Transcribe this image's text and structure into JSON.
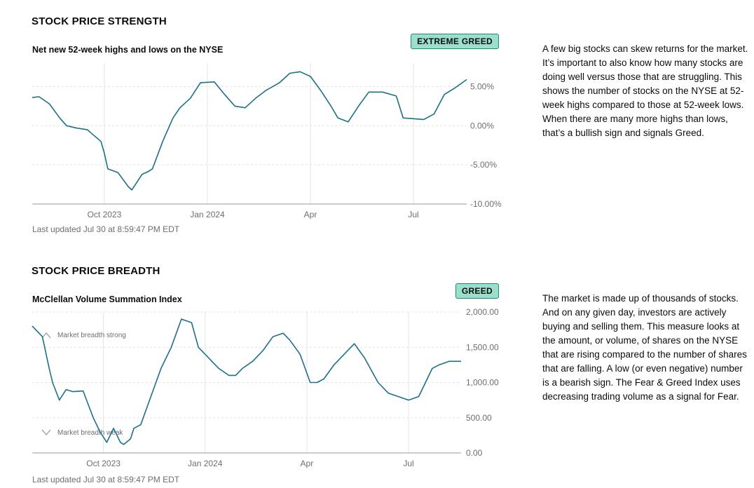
{
  "sections": [
    {
      "heading": "STOCK PRICE STRENGTH",
      "chart_title": "Net new 52-week highs and lows on the NYSE",
      "badge": "EXTREME GREED",
      "updated": "Last updated Jul 30 at 8:59:47 PM EDT",
      "description": "A few big stocks can skew returns for the market. It’s important to also know how many stocks are doing well versus those that are struggling. This shows the number of stocks on the NYSE at 52-week highs compared to those at 52-week lows. When there are many more highs than lows, that’s a bullish sign and signals Greed."
    },
    {
      "heading": "STOCK PRICE BREADTH",
      "chart_title": "McClellan Volume Summation Index",
      "badge": "GREED",
      "updated": "Last updated Jul 30 at 8:59:47 PM EDT",
      "description": "The market is made up of thousands of stocks. And on any given day, investors are actively buying and selling them. This measure looks at the amount, or volume, of shares on the NYSE that are rising compared to the number of shares that are falling. A low (or even negative) number is a bearish sign. The Fear & Greed Index uses decreasing trading volume as a signal for Fear."
    }
  ],
  "colors": {
    "line": "#1d6f8a",
    "grid": "#e3e3e3",
    "axis": "#6e6e6e",
    "badge_bg": "#9bdecb"
  },
  "chart_data": [
    {
      "type": "line",
      "title": "Net new 52-week highs and lows on the NYSE",
      "xlabel": "",
      "ylabel": "",
      "x_range": [
        0,
        12.65
      ],
      "ylim": [
        -10,
        8
      ],
      "yticks": [
        5,
        0,
        -5,
        -10
      ],
      "ytick_labels": [
        "5.00%",
        "0.00%",
        "-5.00%",
        "-10.00%"
      ],
      "xticks": [
        2.1,
        5.1,
        8.1,
        11.1
      ],
      "xtick_labels": [
        "Oct 2023",
        "Jan 2024",
        "Apr",
        "Jul"
      ],
      "series": [
        {
          "name": "Net new highs",
          "x": [
            0,
            0.2,
            0.5,
            0.8,
            1.0,
            1.3,
            1.6,
            2.0,
            2.1,
            2.2,
            2.5,
            2.8,
            2.9,
            3.2,
            3.4,
            3.5,
            3.8,
            4.1,
            4.3,
            4.6,
            4.9,
            5.3,
            5.6,
            5.9,
            6.2,
            6.5,
            6.8,
            7.2,
            7.5,
            7.8,
            8.1,
            8.4,
            8.7,
            8.9,
            9.2,
            9.5,
            9.8,
            10.2,
            10.6,
            10.8,
            11.1,
            11.4,
            11.7,
            12.0,
            12.3,
            12.65
          ],
          "values": [
            3.6,
            3.7,
            2.8,
            1.0,
            0.0,
            -0.3,
            -0.5,
            -2.0,
            -3.5,
            -5.5,
            -6.0,
            -7.8,
            -8.2,
            -6.2,
            -5.8,
            -5.5,
            -2.0,
            1.0,
            2.3,
            3.5,
            5.5,
            5.6,
            4.0,
            2.5,
            2.3,
            3.5,
            4.5,
            5.5,
            6.7,
            6.9,
            6.3,
            4.5,
            2.5,
            1.0,
            0.5,
            2.5,
            4.3,
            4.3,
            3.8,
            1.0,
            0.9,
            0.8,
            1.5,
            4.0,
            4.8,
            5.9
          ]
        }
      ]
    },
    {
      "type": "line",
      "title": "McClellan Volume Summation Index",
      "xlabel": "",
      "ylabel": "",
      "x_range": [
        0,
        12.65
      ],
      "ylim": [
        0,
        2000
      ],
      "yticks": [
        2000,
        1500,
        1000,
        500,
        0
      ],
      "ytick_labels": [
        "2,000.00",
        "1,500.00",
        "1,000.00",
        "500.00",
        "0.00"
      ],
      "xticks": [
        2.1,
        5.1,
        8.1,
        11.1
      ],
      "xtick_labels": [
        "Oct 2023",
        "Jan 2024",
        "Apr",
        "Jul"
      ],
      "annotations": [
        "Market breadth strong",
        "Market breadth weak"
      ],
      "series": [
        {
          "name": "Summation Index",
          "x": [
            0,
            0.3,
            0.5,
            0.6,
            0.8,
            1.0,
            1.2,
            1.5,
            1.8,
            2.0,
            2.2,
            2.4,
            2.6,
            2.7,
            2.9,
            3.0,
            3.2,
            3.5,
            3.8,
            4.1,
            4.4,
            4.7,
            4.9,
            5.2,
            5.5,
            5.8,
            6.0,
            6.2,
            6.5,
            6.8,
            7.1,
            7.4,
            7.6,
            7.9,
            8.2,
            8.4,
            8.6,
            8.9,
            9.1,
            9.5,
            9.8,
            10.2,
            10.5,
            10.8,
            11.1,
            11.4,
            11.6,
            11.8,
            12.0,
            12.3,
            12.65
          ],
          "values": [
            1800,
            1650,
            1200,
            1000,
            750,
            900,
            870,
            880,
            500,
            300,
            150,
            350,
            150,
            120,
            200,
            350,
            400,
            800,
            1200,
            1500,
            1900,
            1850,
            1500,
            1350,
            1200,
            1100,
            1100,
            1200,
            1300,
            1450,
            1650,
            1700,
            1600,
            1400,
            1000,
            1000,
            1050,
            1250,
            1350,
            1550,
            1350,
            1000,
            850,
            800,
            750,
            800,
            1000,
            1200,
            1250,
            1300,
            1300
          ]
        }
      ]
    }
  ]
}
